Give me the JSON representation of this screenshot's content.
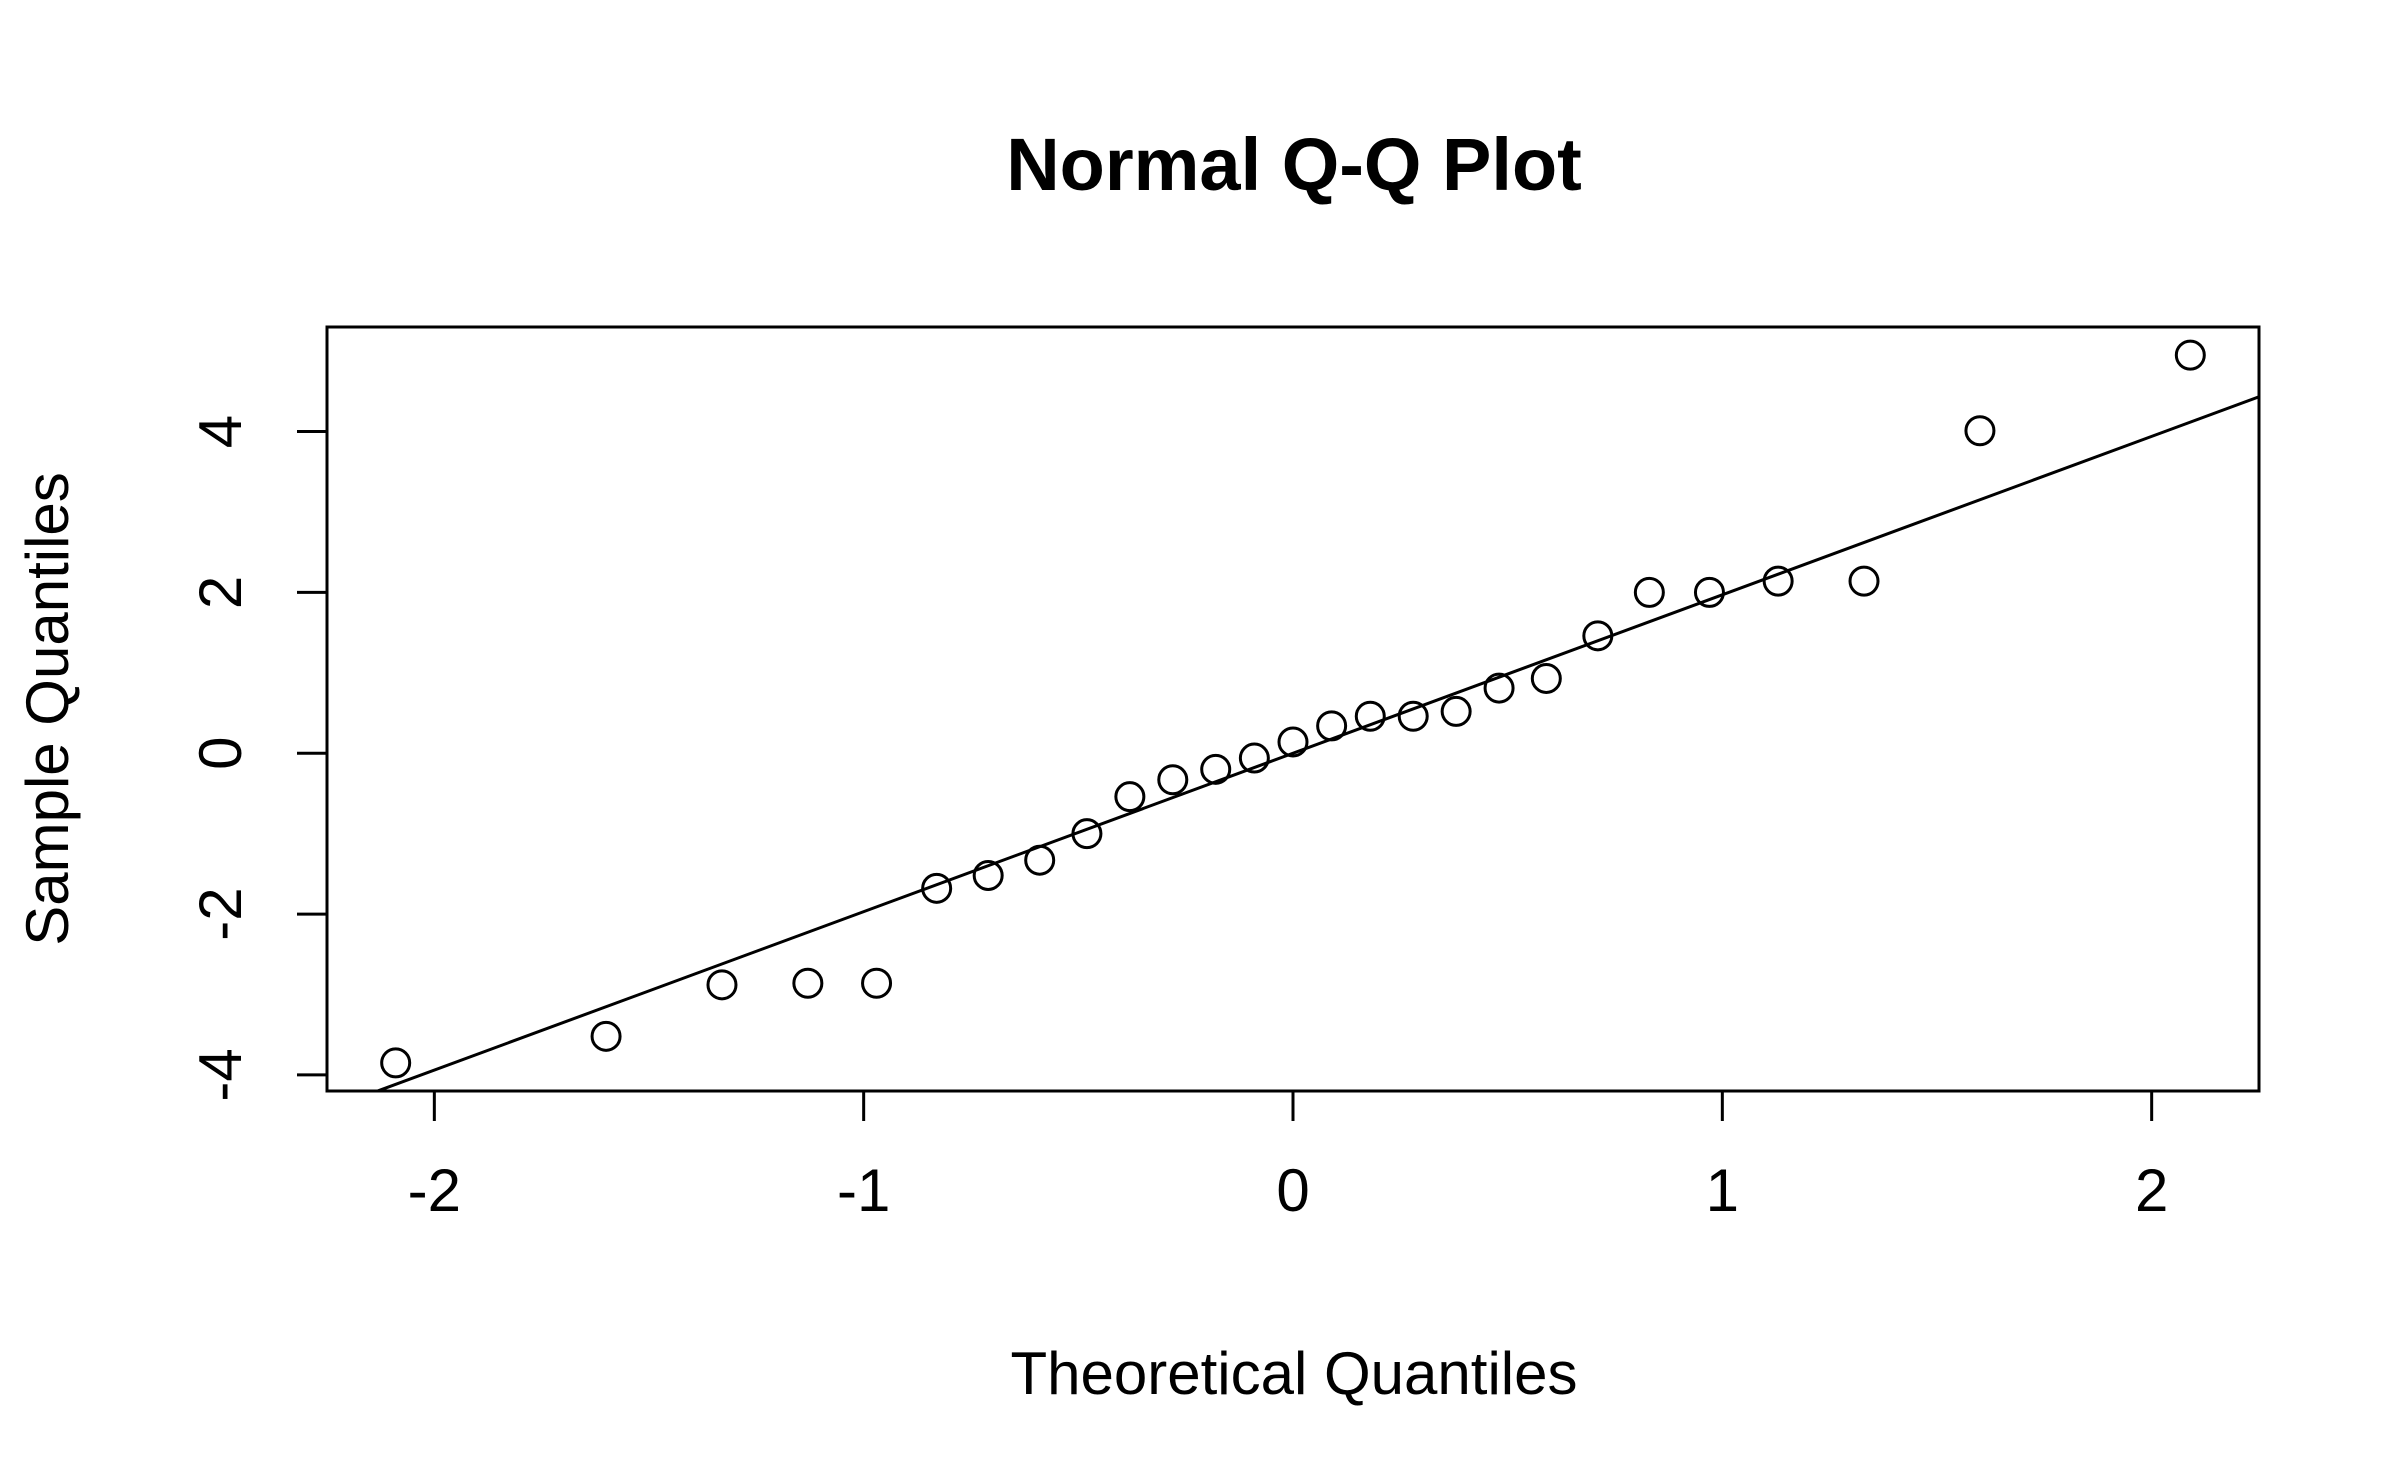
{
  "chart_data": {
    "type": "scatter",
    "title": "Normal Q-Q Plot",
    "xlabel": "Theoretical Quantiles",
    "ylabel": "Sample Quantiles",
    "xlim": [
      -2.25,
      2.25
    ],
    "ylim": [
      -4.2,
      5.3
    ],
    "xticks": [
      -2,
      -1,
      0,
      1,
      2
    ],
    "xtick_labels": [
      "-2",
      "-1",
      "0",
      "1",
      "2"
    ],
    "yticks": [
      -4,
      -2,
      0,
      2,
      4
    ],
    "ytick_labels": [
      "-4",
      "-2",
      "0",
      "2",
      "4"
    ],
    "grid": false,
    "points": {
      "x": [
        -2.09,
        -1.6,
        -1.33,
        -1.13,
        -0.97,
        -0.83,
        -0.71,
        -0.59,
        -0.48,
        -0.38,
        -0.28,
        -0.18,
        -0.09,
        0.0,
        0.09,
        0.18,
        0.28,
        0.38,
        0.48,
        0.59,
        0.71,
        0.83,
        0.97,
        1.13,
        1.33,
        1.6,
        2.09
      ],
      "y": [
        -3.85,
        -3.52,
        -2.88,
        -2.86,
        -2.86,
        -1.68,
        -1.52,
        -1.33,
        -1.0,
        -0.54,
        -0.33,
        -0.2,
        -0.06,
        0.14,
        0.34,
        0.46,
        0.46,
        0.52,
        0.81,
        0.93,
        1.46,
        2.0,
        2.0,
        2.14,
        2.14,
        4.01,
        4.95
      ]
    },
    "reference_line": {
      "intercept": 0.0,
      "slope": 1.97
    }
  }
}
